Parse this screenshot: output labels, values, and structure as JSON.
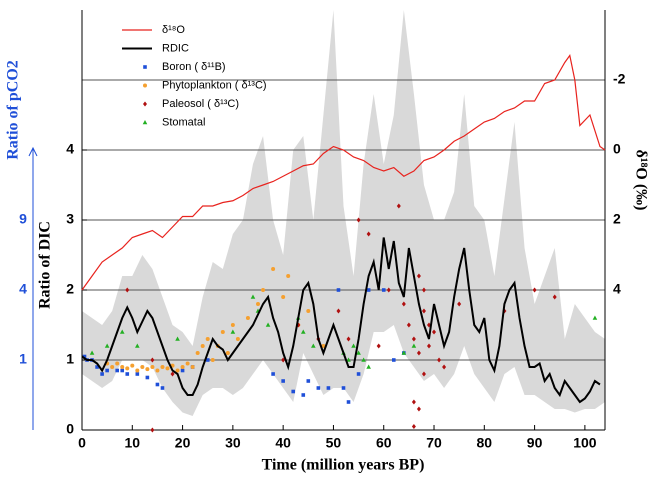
{
  "chart_data": {
    "type": "line",
    "xlabel": "Time (million years BP)",
    "ylabel": "Ratio of DIC",
    "y2label": "δ¹⁸O (‰)",
    "y3label": "Ratio of pCO2",
    "y3scale": "sqrt",
    "y3color": "#1f4fd8",
    "xlim": [
      0,
      104
    ],
    "ylim": [
      0,
      6
    ],
    "y2lim": [
      8,
      -4
    ],
    "xticks": [
      0,
      10,
      20,
      30,
      40,
      50,
      60,
      70,
      80,
      90,
      100
    ],
    "yticks": [
      0,
      1,
      2,
      3,
      4
    ],
    "y2ticks": [
      -2,
      0,
      2,
      4
    ],
    "y3ticks": [
      1,
      4,
      9
    ],
    "grid": true,
    "band": {
      "color": "#d9d9d9",
      "x": [
        0,
        2,
        4,
        6,
        8,
        10,
        12,
        14,
        16,
        18,
        20,
        22,
        24,
        26,
        28,
        30,
        32,
        34,
        36,
        38,
        40,
        42,
        44,
        46,
        48,
        50,
        52,
        54,
        56,
        58,
        60,
        62,
        64,
        66,
        68,
        70,
        72,
        74,
        76,
        78,
        80,
        82,
        84,
        86,
        88,
        90,
        92,
        94,
        96,
        98,
        100,
        102,
        104
      ],
      "upper": [
        1.7,
        1.6,
        1.5,
        1.7,
        2.2,
        2.2,
        2.5,
        2.3,
        1.9,
        1.5,
        1.4,
        1.2,
        1.9,
        2.4,
        2.3,
        2.8,
        3.0,
        3.8,
        4.2,
        3.0,
        2.5,
        4.0,
        4.2,
        3.0,
        4.5,
        6.0,
        3.2,
        2.2,
        3.8,
        4.8,
        3.8,
        4.5,
        6.0,
        4.8,
        3.5,
        3.0,
        3.0,
        3.4,
        4.8,
        3.2,
        3.0,
        2.2,
        3.3,
        4.4,
        2.6,
        1.8,
        2.2,
        2.6,
        1.3,
        1.8,
        1.6,
        1.4,
        1.3
      ],
      "lower": [
        0.8,
        0.7,
        0.6,
        0.7,
        1.0,
        1.0,
        1.0,
        0.9,
        0.6,
        0.4,
        0.25,
        0.2,
        0.5,
        0.6,
        0.6,
        0.5,
        0.6,
        0.8,
        1.0,
        0.8,
        0.6,
        0.4,
        1.1,
        0.8,
        0.5,
        0.6,
        0.6,
        0.4,
        0.8,
        1.4,
        1.4,
        1.5,
        1.1,
        0.9,
        0.7,
        0.8,
        0.6,
        0.8,
        1.2,
        0.8,
        0.6,
        0.4,
        0.8,
        0.9,
        0.5,
        0.5,
        0.4,
        0.3,
        0.3,
        0.25,
        0.3,
        0.3,
        0.4
      ]
    },
    "series": [
      {
        "name": "δ¹⁸O",
        "type": "line",
        "axis": "y2",
        "color": "#e8231e",
        "x": [
          0,
          2,
          4,
          6,
          8,
          10,
          12,
          14,
          16,
          18,
          20,
          22,
          24,
          26,
          28,
          30,
          32,
          34,
          36,
          38,
          40,
          42,
          44,
          46,
          48,
          50,
          52,
          54,
          56,
          58,
          60,
          62,
          64,
          66,
          68,
          70,
          72,
          74,
          76,
          78,
          80,
          82,
          84,
          86,
          88,
          90,
          92,
          94,
          96,
          97,
          98,
          99,
          101,
          103,
          104
        ],
        "values": [
          4.0,
          3.6,
          3.2,
          3.0,
          2.8,
          2.5,
          2.4,
          2.3,
          2.5,
          2.2,
          1.9,
          1.9,
          1.6,
          1.6,
          1.5,
          1.45,
          1.3,
          1.1,
          1.0,
          0.9,
          0.75,
          0.6,
          0.45,
          0.4,
          0.1,
          -0.1,
          0.0,
          0.2,
          0.3,
          0.5,
          0.6,
          0.5,
          0.75,
          0.6,
          0.3,
          0.2,
          0.0,
          -0.25,
          -0.4,
          -0.6,
          -0.8,
          -0.9,
          -1.1,
          -1.2,
          -1.4,
          -1.4,
          -1.9,
          -2.0,
          -2.5,
          -2.7,
          -2.0,
          -0.7,
          -1.0,
          -0.1,
          0.0
        ]
      },
      {
        "name": "RDIC",
        "type": "line",
        "color": "#000000",
        "x": [
          0,
          1,
          2,
          3,
          4,
          5,
          6,
          7,
          8,
          9,
          10,
          11,
          12,
          13,
          14,
          15,
          16,
          17,
          18,
          19,
          20,
          21,
          22,
          23,
          24,
          25,
          26,
          27,
          28,
          29,
          30,
          31,
          32,
          33,
          34,
          35,
          36,
          37,
          38,
          39,
          40,
          41,
          42,
          43,
          44,
          45,
          46,
          47,
          48,
          49,
          50,
          51,
          52,
          53,
          54,
          55,
          56,
          57,
          58,
          59,
          60,
          61,
          62,
          63,
          64,
          65,
          66,
          67,
          68,
          69,
          70,
          71,
          72,
          73,
          74,
          75,
          76,
          77,
          78,
          79,
          80,
          81,
          82,
          83,
          84,
          85,
          86,
          87,
          88,
          89,
          90,
          91,
          92,
          93,
          94,
          95,
          96,
          97,
          98,
          99,
          100,
          101,
          102,
          103
        ],
        "values": [
          1.05,
          1.0,
          1.0,
          0.95,
          0.85,
          1.0,
          1.2,
          1.4,
          1.6,
          1.75,
          1.6,
          1.4,
          1.55,
          1.7,
          1.6,
          1.4,
          1.2,
          1.0,
          0.85,
          0.8,
          0.6,
          0.5,
          0.5,
          0.65,
          0.9,
          1.1,
          1.3,
          1.2,
          1.15,
          1.0,
          1.1,
          1.2,
          1.3,
          1.4,
          1.5,
          1.65,
          1.8,
          1.9,
          1.6,
          1.4,
          1.1,
          0.9,
          1.2,
          1.6,
          2.0,
          2.1,
          1.8,
          1.3,
          1.1,
          1.3,
          1.5,
          1.3,
          1.1,
          0.9,
          0.9,
          1.3,
          1.8,
          2.2,
          2.4,
          2.0,
          2.75,
          2.3,
          2.7,
          2.1,
          1.9,
          2.6,
          2.2,
          1.8,
          1.5,
          1.3,
          1.8,
          1.5,
          1.2,
          1.4,
          1.9,
          2.3,
          2.6,
          2.0,
          1.5,
          1.4,
          1.6,
          1.0,
          0.85,
          1.2,
          1.8,
          2.0,
          2.1,
          1.6,
          1.2,
          0.9,
          0.9,
          0.95,
          0.7,
          0.8,
          0.6,
          0.5,
          0.7,
          0.6,
          0.5,
          0.4,
          0.45,
          0.55,
          0.7,
          0.65
        ]
      },
      {
        "name": "Boron ( δ¹¹B)",
        "type": "scatter",
        "marker": "square",
        "color": "#1f4fd8",
        "x": [
          0.5,
          1,
          2,
          3,
          4,
          5,
          7,
          8,
          9,
          11,
          13,
          15,
          16,
          20,
          22,
          25,
          38,
          40,
          42,
          44,
          45,
          47,
          49,
          51,
          52,
          53,
          55,
          57,
          60,
          62,
          64
        ],
        "values": [
          1.05,
          1.0,
          1.0,
          0.9,
          0.8,
          0.85,
          0.85,
          0.85,
          0.8,
          0.8,
          0.75,
          0.65,
          0.6,
          0.85,
          0.9,
          1.0,
          0.8,
          0.7,
          0.55,
          0.5,
          0.7,
          0.6,
          0.6,
          2.0,
          0.6,
          0.4,
          0.8,
          2.0,
          2.0,
          1.0,
          1.1
        ]
      },
      {
        "name": "Phytoplankton ( δ¹³C)",
        "type": "scatter",
        "marker": "circle",
        "color": "#f5a030",
        "x": [
          5,
          6,
          7,
          8,
          9,
          10,
          11,
          12,
          13,
          14,
          15,
          16,
          17,
          18,
          19,
          20,
          21,
          22,
          23,
          24,
          25,
          26,
          27,
          28,
          29,
          30,
          31,
          33,
          35,
          36,
          38,
          40,
          41,
          43,
          45,
          48
        ],
        "values": [
          0.95,
          0.9,
          0.95,
          0.9,
          0.88,
          0.92,
          0.85,
          0.9,
          0.87,
          0.9,
          0.85,
          0.9,
          0.88,
          0.92,
          0.85,
          0.9,
          0.95,
          0.9,
          1.1,
          1.2,
          1.3,
          1.0,
          1.2,
          1.4,
          1.1,
          1.5,
          1.3,
          1.6,
          1.8,
          2.0,
          2.3,
          1.9,
          2.2,
          1.5,
          1.7,
          1.2
        ]
      },
      {
        "name": "Paleosol ( δ¹³C)",
        "type": "scatter",
        "marker": "diamond",
        "color": "#b01010",
        "x": [
          9,
          14,
          18,
          14,
          40,
          43,
          47,
          51,
          53,
          55,
          57,
          59,
          61,
          63,
          64,
          65,
          66,
          67,
          68,
          69,
          70,
          71,
          72,
          66,
          67,
          66,
          68,
          69,
          75,
          84,
          90,
          94,
          67,
          68
        ],
        "values": [
          2.0,
          1.0,
          0.8,
          0.0,
          1.0,
          1.5,
          1.3,
          1.7,
          1.3,
          3.0,
          2.8,
          1.2,
          2.0,
          3.2,
          1.8,
          1.5,
          1.3,
          1.1,
          0.8,
          1.2,
          1.4,
          1.0,
          0.9,
          0.4,
          0.3,
          0.05,
          1.7,
          1.5,
          1.8,
          1.7,
          2.0,
          1.9,
          2.2,
          2.0
        ]
      },
      {
        "name": "Stomatal",
        "type": "scatter",
        "marker": "triangle",
        "color": "#22b022",
        "x": [
          2,
          5,
          8,
          11,
          19,
          30,
          34,
          35,
          37,
          43,
          44,
          46,
          52,
          53,
          54,
          55,
          56,
          57,
          64,
          66,
          102
        ],
        "values": [
          1.1,
          1.2,
          1.4,
          1.2,
          1.3,
          1.4,
          1.9,
          1.7,
          1.5,
          1.6,
          1.4,
          1.2,
          1.1,
          1.0,
          1.2,
          1.1,
          1.0,
          0.9,
          1.1,
          1.2,
          1.6
        ]
      }
    ]
  }
}
